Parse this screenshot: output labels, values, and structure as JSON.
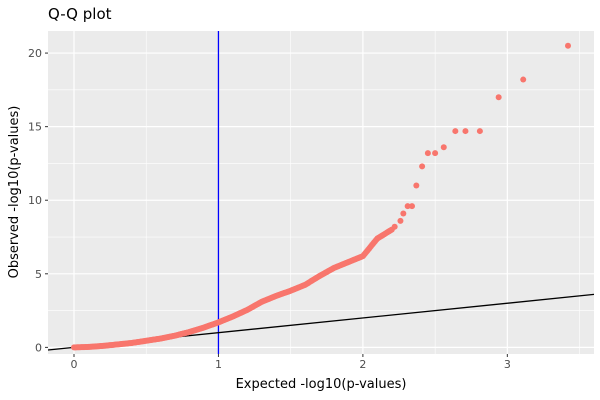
{
  "chart_data": {
    "type": "scatter",
    "title": "Q-Q plot",
    "xlabel": "Expected -log10(p-values)",
    "ylabel": "Observed -log10(p-values)",
    "xlim": [
      -0.18,
      3.6
    ],
    "ylim": [
      -0.45,
      21.5
    ],
    "x_ticks": [
      0,
      1,
      2,
      3
    ],
    "y_ticks": [
      0,
      5,
      10,
      15,
      20
    ],
    "x_tick_labels": [
      "0",
      "1",
      "2",
      "3"
    ],
    "y_tick_labels": [
      "0",
      "5",
      "10",
      "15",
      "20"
    ],
    "grid": true,
    "legend": "none",
    "point_color": "#f8766d",
    "panel_color": "#ebebeb",
    "reference_lines": [
      {
        "kind": "vertical",
        "x": 1,
        "color": "#0000ff"
      },
      {
        "kind": "diagonal",
        "slope": 1,
        "intercept": 0,
        "color": "#000000"
      }
    ],
    "dense_points": [
      {
        "x": 0.0,
        "y": 0.0
      },
      {
        "x": 0.1,
        "y": 0.03
      },
      {
        "x": 0.2,
        "y": 0.1
      },
      {
        "x": 0.3,
        "y": 0.2
      },
      {
        "x": 0.4,
        "y": 0.3
      },
      {
        "x": 0.5,
        "y": 0.45
      },
      {
        "x": 0.6,
        "y": 0.6
      },
      {
        "x": 0.7,
        "y": 0.8
      },
      {
        "x": 0.8,
        "y": 1.05
      },
      {
        "x": 0.9,
        "y": 1.35
      },
      {
        "x": 1.0,
        "y": 1.7
      },
      {
        "x": 1.1,
        "y": 2.1
      },
      {
        "x": 1.2,
        "y": 2.55
      },
      {
        "x": 1.3,
        "y": 3.1
      },
      {
        "x": 1.4,
        "y": 3.5
      },
      {
        "x": 1.5,
        "y": 3.85
      },
      {
        "x": 1.6,
        "y": 4.25
      },
      {
        "x": 1.7,
        "y": 4.85
      },
      {
        "x": 1.8,
        "y": 5.4
      },
      {
        "x": 1.9,
        "y": 5.8
      },
      {
        "x": 2.0,
        "y": 6.2
      },
      {
        "x": 2.1,
        "y": 7.4
      },
      {
        "x": 2.2,
        "y": 8.0
      }
    ],
    "points": [
      {
        "x": 2.22,
        "y": 8.2
      },
      {
        "x": 2.26,
        "y": 8.6
      },
      {
        "x": 2.28,
        "y": 9.1
      },
      {
        "x": 2.31,
        "y": 9.6
      },
      {
        "x": 2.34,
        "y": 9.6
      },
      {
        "x": 2.37,
        "y": 11.0
      },
      {
        "x": 2.41,
        "y": 12.3
      },
      {
        "x": 2.45,
        "y": 13.2
      },
      {
        "x": 2.5,
        "y": 13.2
      },
      {
        "x": 2.56,
        "y": 13.6
      },
      {
        "x": 2.64,
        "y": 14.7
      },
      {
        "x": 2.71,
        "y": 14.7
      },
      {
        "x": 2.81,
        "y": 14.7
      },
      {
        "x": 2.94,
        "y": 17.0
      },
      {
        "x": 3.11,
        "y": 18.2
      },
      {
        "x": 3.42,
        "y": 20.5
      }
    ]
  }
}
